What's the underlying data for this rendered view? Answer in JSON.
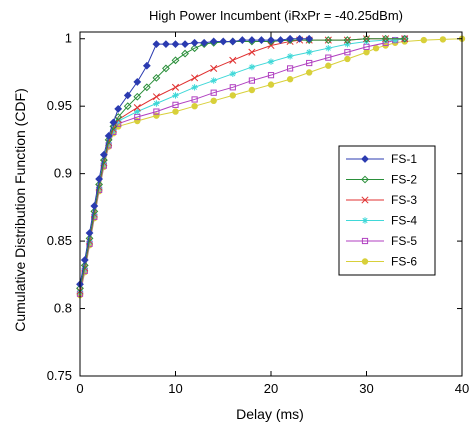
{
  "chart_data": {
    "type": "line",
    "title": "High Power Incumbent (iRxPr = -40.25dBm)",
    "xlabel": "Delay (ms)",
    "ylabel": "Cumulative Distribution Function (CDF)",
    "xlim": [
      0,
      40
    ],
    "ylim": [
      0.75,
      1.005
    ],
    "xticks": [
      0,
      10,
      20,
      30,
      40
    ],
    "yticks": [
      0.75,
      0.8,
      0.85,
      0.9,
      0.95,
      1
    ],
    "ytick_labels": [
      "0.75",
      "0.8",
      "0.85",
      "0.9",
      "0.95",
      "1"
    ],
    "grid": false,
    "legend_position": "right",
    "series": [
      {
        "name": "FS-1",
        "color": "#2b3bb0",
        "marker": "diamond",
        "x": [
          0,
          0.5,
          1,
          1.5,
          2,
          2.5,
          3,
          3.5,
          4,
          5,
          6,
          7,
          8,
          9,
          10,
          11,
          12,
          13,
          14,
          15,
          16,
          17,
          18,
          19,
          20,
          21,
          22,
          23,
          24
        ],
        "y": [
          0.818,
          0.836,
          0.856,
          0.876,
          0.896,
          0.914,
          0.928,
          0.938,
          0.948,
          0.958,
          0.968,
          0.98,
          0.996,
          0.996,
          0.996,
          0.996,
          0.997,
          0.997,
          0.998,
          0.998,
          0.998,
          0.999,
          0.999,
          0.999,
          0.999,
          0.999,
          1.0,
          1.0,
          1.0
        ]
      },
      {
        "name": "FS-2",
        "color": "#2a8f3a",
        "marker": "diamond-open",
        "x": [
          0,
          0.5,
          1,
          1.5,
          2,
          2.5,
          3,
          3.5,
          4,
          5,
          6,
          7,
          8,
          9,
          10,
          11,
          12,
          13,
          14,
          16,
          18,
          20,
          22,
          24,
          26,
          28,
          30,
          32,
          34
        ],
        "y": [
          0.815,
          0.832,
          0.852,
          0.872,
          0.892,
          0.91,
          0.925,
          0.935,
          0.942,
          0.95,
          0.957,
          0.964,
          0.971,
          0.978,
          0.984,
          0.989,
          0.993,
          0.996,
          0.997,
          0.998,
          0.998,
          0.998,
          0.999,
          0.999,
          0.999,
          0.999,
          1.0,
          1.0,
          1.0
        ]
      },
      {
        "name": "FS-3",
        "color": "#e03030",
        "marker": "x",
        "x": [
          0,
          0.5,
          1,
          1.5,
          2,
          2.5,
          3,
          3.5,
          4,
          6,
          8,
          10,
          12,
          14,
          16,
          18,
          20,
          22,
          23,
          24,
          26,
          28,
          30,
          32,
          34
        ],
        "y": [
          0.813,
          0.83,
          0.85,
          0.87,
          0.89,
          0.908,
          0.923,
          0.933,
          0.94,
          0.949,
          0.957,
          0.964,
          0.971,
          0.978,
          0.984,
          0.99,
          0.995,
          0.998,
          0.999,
          0.999,
          0.999,
          0.999,
          1.0,
          1.0,
          1.0
        ]
      },
      {
        "name": "FS-4",
        "color": "#3fd8d8",
        "marker": "star",
        "x": [
          0,
          0.5,
          1,
          1.5,
          2,
          2.5,
          3,
          3.5,
          4,
          6,
          8,
          10,
          12,
          14,
          16,
          18,
          20,
          22,
          24,
          26,
          28,
          30,
          32,
          33,
          34
        ],
        "y": [
          0.812,
          0.829,
          0.849,
          0.869,
          0.889,
          0.907,
          0.922,
          0.932,
          0.939,
          0.946,
          0.952,
          0.958,
          0.964,
          0.969,
          0.974,
          0.979,
          0.983,
          0.987,
          0.99,
          0.993,
          0.996,
          0.998,
          0.999,
          0.999,
          1.0
        ]
      },
      {
        "name": "FS-5",
        "color": "#b03fc0",
        "marker": "square-open",
        "x": [
          0,
          0.5,
          1,
          1.5,
          2,
          2.5,
          3,
          3.5,
          4,
          6,
          8,
          10,
          12,
          14,
          16,
          18,
          20,
          22,
          24,
          26,
          28,
          30,
          32,
          33,
          34
        ],
        "y": [
          0.811,
          0.828,
          0.848,
          0.868,
          0.888,
          0.906,
          0.921,
          0.931,
          0.937,
          0.942,
          0.946,
          0.951,
          0.955,
          0.96,
          0.964,
          0.969,
          0.973,
          0.978,
          0.982,
          0.986,
          0.99,
          0.994,
          0.997,
          0.999,
          1.0
        ]
      },
      {
        "name": "FS-6",
        "color": "#d8d03a",
        "marker": "circle",
        "x": [
          0,
          0.5,
          1,
          1.5,
          2,
          2.5,
          3,
          3.5,
          4,
          6,
          8,
          10,
          12,
          14,
          16,
          18,
          20,
          22,
          24,
          26,
          28,
          30,
          31,
          32,
          33,
          34,
          36,
          38,
          40
        ],
        "y": [
          0.81,
          0.827,
          0.847,
          0.867,
          0.887,
          0.905,
          0.92,
          0.93,
          0.935,
          0.939,
          0.943,
          0.946,
          0.95,
          0.954,
          0.958,
          0.962,
          0.966,
          0.97,
          0.975,
          0.98,
          0.985,
          0.99,
          0.993,
          0.995,
          0.997,
          0.998,
          0.999,
          0.9995,
          1.0
        ]
      }
    ]
  }
}
